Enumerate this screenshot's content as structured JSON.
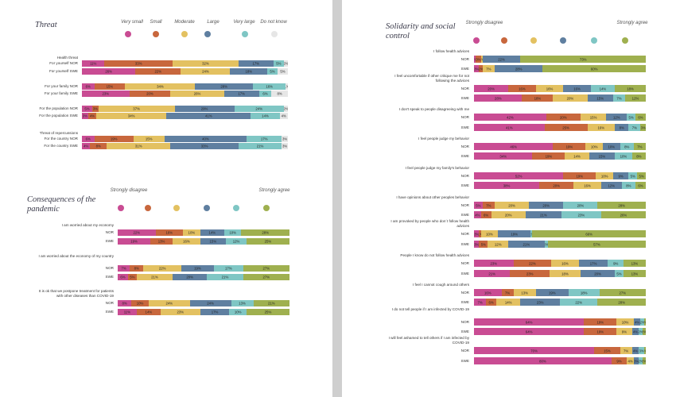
{
  "colors": {
    "c1": "#c94c93",
    "c2": "#c8673d",
    "c3": "#e3c161",
    "c4": "#5f7fa0",
    "c5": "#7fc6c4",
    "c6": "#9fb04f",
    "c0": "#e6e6e6"
  },
  "threat": {
    "title": "Threat",
    "legend": [
      "Very small",
      "Small",
      "Moderate",
      "Large",
      "Very large",
      "Do not know"
    ]
  },
  "consequences": {
    "title": "Consequences of the pandemic",
    "legend_left": "Strongly disagree",
    "legend_right": "Strongly agree"
  },
  "solidarity": {
    "title": "Solidarity and social control",
    "legend_left": "Strongly disagree",
    "legend_right": "Strongly agree"
  },
  "chart_data": [
    {
      "type": "bar",
      "title": "Threat",
      "legend": [
        "Very small",
        "Small",
        "Moderate",
        "Large",
        "Very large",
        "Do not know"
      ],
      "rows": [
        {
          "group": "Health threat",
          "label": "For yourself NOR",
          "values": [
            11,
            33,
            32,
            17,
            5,
            2
          ]
        },
        {
          "label": "For yourself SWE",
          "values": [
            26,
            22,
            24,
            18,
            5,
            5
          ]
        },
        {
          "group": "",
          "label": "For your family NOR",
          "values": [
            6,
            15,
            34,
            28,
            16,
            1
          ]
        },
        {
          "label": "For your family SWE",
          "values": [
            23,
            20,
            26,
            17,
            6,
            8
          ]
        },
        {
          "group": "",
          "label": "For the population NOR",
          "values": [
            5,
            3,
            37,
            29,
            24,
            2
          ]
        },
        {
          "label": "For the population SWE",
          "values": [
            3,
            4,
            34,
            41,
            14,
            4
          ]
        },
        {
          "group": "Threat of repercussions",
          "label": "For the country NOR",
          "values": [
            6,
            19,
            15,
            40,
            17,
            3
          ]
        },
        {
          "label": "For the country SWE",
          "values": [
            4,
            8,
            31,
            33,
            21,
            3
          ]
        }
      ]
    },
    {
      "type": "bar",
      "title": "Consequences of the pandemic",
      "legend_left": "Strongly disagree",
      "legend_right": "Strongly agree",
      "rows": [
        {
          "group": "I am worried about my economy",
          "label": "NOR",
          "values": [
            22,
            16,
            10,
            14,
            10,
            28
          ]
        },
        {
          "label": "SWE",
          "values": [
            19,
            13,
            16,
            15,
            12,
            25
          ]
        },
        {
          "group": "I am worried about the economy of my country",
          "label": "NOR",
          "values": [
            7,
            8,
            22,
            19,
            17,
            27
          ]
        },
        {
          "label": "SWE",
          "values": [
            6,
            5,
            21,
            20,
            21,
            27
          ]
        },
        {
          "group": "It is ok that we postpone treatment for patients with other diseases than COVID-19",
          "label": "NOR",
          "values": [
            8,
            10,
            24,
            24,
            13,
            21
          ]
        },
        {
          "label": "SWE",
          "values": [
            11,
            14,
            23,
            17,
            10,
            25
          ]
        }
      ]
    },
    {
      "type": "bar",
      "title": "Solidarity and social control",
      "legend_left": "Strongly disagree",
      "legend_right": "Strongly agree",
      "rows": [
        {
          "group": "I follow health advices",
          "label": "NOR",
          "values": [
            1,
            3,
            1,
            22,
            0,
            73
          ]
        },
        {
          "label": "SWE",
          "values": [
            3,
            2,
            7,
            28,
            0,
            60
          ]
        },
        {
          "group": "I feel uncomfortable if other critique me for not following the advices",
          "label": "NOR",
          "values": [
            20,
            16,
            16,
            16,
            14,
            18
          ]
        },
        {
          "label": "SWE",
          "values": [
            28,
            18,
            20,
            15,
            7,
            12
          ]
        },
        {
          "group": "I don't speak to people disagreeing with me",
          "label": "NOR",
          "values": [
            42,
            20,
            15,
            12,
            5,
            6
          ]
        },
        {
          "label": "SWE",
          "values": [
            41,
            25,
            16,
            8,
            7,
            3
          ]
        },
        {
          "group": "I feel people judge my behavior",
          "label": "NOR",
          "values": [
            46,
            19,
            10,
            10,
            8,
            7
          ]
        },
        {
          "label": "SWE",
          "values": [
            34,
            19,
            14,
            15,
            10,
            8
          ]
        },
        {
          "group": "I feel people judge my family's behavior",
          "label": "NOR",
          "values": [
            52,
            19,
            10,
            9,
            5,
            5
          ]
        },
        {
          "label": "SWE",
          "values": [
            38,
            20,
            16,
            12,
            8,
            6
          ]
        },
        {
          "group": "I have opinions about other peoples behavior",
          "label": "NOR",
          "values": [
            5,
            7,
            20,
            20,
            20,
            28
          ]
        },
        {
          "label": "SWE",
          "values": [
            4,
            6,
            20,
            21,
            23,
            26
          ]
        },
        {
          "group": "I am provoked by people who don´t follow health advices",
          "label": "NOR",
          "values": [
            3,
            1,
            10,
            19,
            1,
            66
          ]
        },
        {
          "label": "SWE",
          "values": [
            3,
            5,
            12,
            21,
            2,
            57
          ]
        },
        {
          "group": "People I know do not follow health advices",
          "label": "NOR",
          "values": [
            23,
            22,
            16,
            17,
            9,
            13
          ]
        },
        {
          "label": "SWE",
          "values": [
            21,
            23,
            18,
            20,
            5,
            13
          ]
        },
        {
          "group": "I feel I cannot cough around others",
          "label": "NOR",
          "values": [
            16,
            7,
            13,
            19,
            18,
            27
          ]
        },
        {
          "label": "SWE",
          "values": [
            7,
            6,
            14,
            23,
            22,
            28
          ]
        },
        {
          "group": "I do not tell people if I am infected by COVID-19",
          "label": "NOR",
          "values": [
            64,
            19,
            10,
            4,
            2,
            1
          ]
        },
        {
          "label": "SWE",
          "values": [
            64,
            19,
            9,
            4,
            2,
            2
          ]
        },
        {
          "group": "I will feel ashamed to tell others if I am infected by COVID-19",
          "label": "NOR",
          "values": [
            70,
            15,
            7,
            4,
            3,
            1
          ]
        },
        {
          "label": "SWE",
          "values": [
            80,
            9,
            4,
            3,
            2,
            2
          ]
        }
      ]
    }
  ]
}
